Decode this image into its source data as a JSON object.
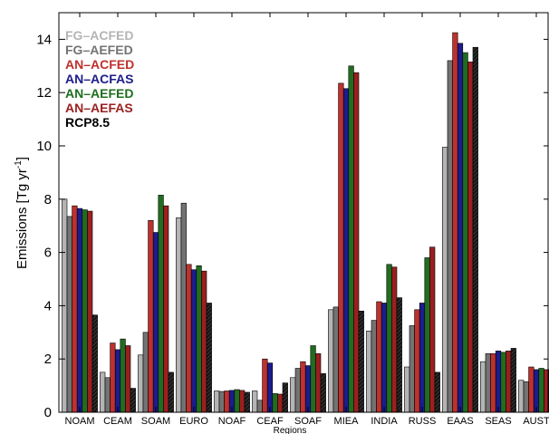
{
  "chart_data": {
    "type": "bar",
    "xlabel": "Regions",
    "ylabel": "Emissions [Tg yr",
    "ylabel_sup": "-1",
    "ylabel_close": "]",
    "ylim": [
      0,
      15
    ],
    "yticks": [
      "0",
      "2",
      "4",
      "6",
      "8",
      "10",
      "12",
      "14"
    ],
    "grid": false,
    "legend_position": "top-left",
    "categories": [
      "NOAM",
      "CEAM",
      "SOAM",
      "EURO",
      "NOAF",
      "CEAF",
      "SOAF",
      "MIEA",
      "INDIA",
      "RUSS",
      "EAAS",
      "SEAS",
      "AUST"
    ],
    "series": [
      {
        "name": "FG–ACFED",
        "color": "#b4b4b4",
        "values": [
          8.0,
          1.5,
          2.15,
          7.3,
          0.8,
          0.8,
          1.3,
          3.85,
          3.05,
          1.7,
          9.95,
          1.9,
          1.2
        ]
      },
      {
        "name": "FG–AEFED",
        "color": "#737373",
        "values": [
          7.35,
          1.3,
          3.0,
          7.85,
          0.78,
          0.45,
          1.65,
          3.95,
          3.45,
          3.25,
          13.2,
          2.2,
          1.15
        ]
      },
      {
        "name": "AN–ACFED",
        "color": "#c0302c",
        "values": [
          7.75,
          2.6,
          7.2,
          5.55,
          0.8,
          2.0,
          1.9,
          12.35,
          4.15,
          3.85,
          14.25,
          2.2,
          1.7
        ]
      },
      {
        "name": "AN–ACFAS",
        "color": "#1c1c8c",
        "values": [
          7.65,
          2.35,
          6.75,
          5.35,
          0.82,
          1.85,
          1.75,
          12.15,
          4.1,
          4.1,
          13.85,
          2.3,
          1.6
        ]
      },
      {
        "name": "AN–AEFED",
        "color": "#1e6e1e",
        "values": [
          7.6,
          2.75,
          8.15,
          5.5,
          0.85,
          0.7,
          2.5,
          13.0,
          5.55,
          5.8,
          13.5,
          2.25,
          1.65
        ]
      },
      {
        "name": "AN–AEFAS",
        "color": "#9a2020",
        "values": [
          7.55,
          2.5,
          7.75,
          5.3,
          0.82,
          0.68,
          2.2,
          12.75,
          5.45,
          6.2,
          13.15,
          2.3,
          1.6
        ]
      },
      {
        "name": "RCP8.5",
        "color": "#151515",
        "values": [
          3.65,
          0.9,
          1.5,
          4.1,
          0.75,
          1.1,
          1.45,
          3.8,
          4.3,
          1.5,
          13.7,
          2.4,
          1.6
        ]
      }
    ]
  }
}
